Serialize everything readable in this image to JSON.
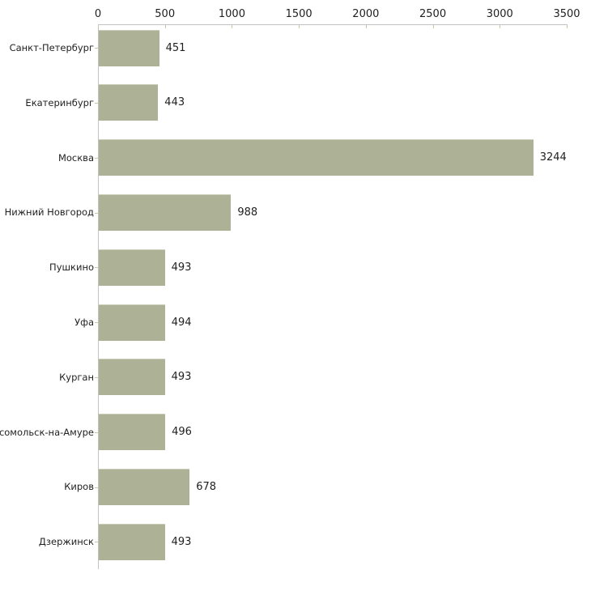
{
  "chart_data": {
    "type": "bar",
    "orientation": "horizontal",
    "title": "",
    "xlabel": "",
    "ylabel": "",
    "categories": [
      "Санкт-Петербург",
      "Екатеринбург",
      "Москва",
      "Нижний Новгород",
      "Пушкино",
      "Уфа",
      "Курган",
      "мсомольск-на-Амуре",
      "Киров",
      "Дзержинск"
    ],
    "values": [
      451,
      443,
      3244,
      988,
      493,
      494,
      493,
      496,
      678,
      493
    ],
    "value_labels": [
      "451",
      "443",
      "3244",
      "988",
      "493",
      "494",
      "493",
      "496",
      "678",
      "493"
    ],
    "x_ticks": [
      0,
      500,
      1000,
      1500,
      2000,
      2500,
      3000,
      3500
    ],
    "xlim": [
      0,
      3500
    ],
    "grid": false,
    "legend": null,
    "axis_position": "top",
    "colors": {
      "bar": "#adb297",
      "bar_top_edge": "#c9cdb8",
      "axis_line": "#c3c3c3",
      "tick_mark": "#c8c8a6",
      "text": "#1f1f1f",
      "background": "#ffffff"
    }
  }
}
